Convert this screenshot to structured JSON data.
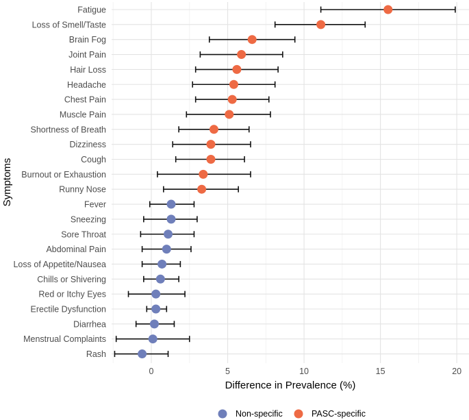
{
  "chart_data": {
    "type": "scatter",
    "xlabel": "Difference in Prevalence (%)",
    "ylabel": "Symptoms",
    "xlim": [
      -2.6,
      20.8
    ],
    "xticks": [
      0,
      5,
      10,
      15,
      20
    ],
    "xtick_labels": [
      "0",
      "5",
      "10",
      "15",
      "20"
    ],
    "grid": true,
    "legend_position": "bottom",
    "legend": [
      {
        "name": "Non-specific",
        "color": "#6f7fba"
      },
      {
        "name": "PASC-specific",
        "color": "#ee6a44"
      }
    ],
    "points": [
      {
        "label": "Fatigue",
        "value": 15.5,
        "lo": 11.1,
        "hi": 19.9,
        "group": "PASC-specific"
      },
      {
        "label": "Loss of Smell/Taste",
        "value": 11.1,
        "lo": 8.1,
        "hi": 14.0,
        "group": "PASC-specific"
      },
      {
        "label": "Brain Fog",
        "value": 6.6,
        "lo": 3.8,
        "hi": 9.4,
        "group": "PASC-specific"
      },
      {
        "label": "Joint Pain",
        "value": 5.9,
        "lo": 3.2,
        "hi": 8.6,
        "group": "PASC-specific"
      },
      {
        "label": "Hair Loss",
        "value": 5.6,
        "lo": 2.9,
        "hi": 8.3,
        "group": "PASC-specific"
      },
      {
        "label": "Headache",
        "value": 5.4,
        "lo": 2.7,
        "hi": 8.1,
        "group": "PASC-specific"
      },
      {
        "label": "Chest Pain",
        "value": 5.3,
        "lo": 2.9,
        "hi": 7.7,
        "group": "PASC-specific"
      },
      {
        "label": "Muscle Pain",
        "value": 5.1,
        "lo": 2.3,
        "hi": 7.8,
        "group": "PASC-specific"
      },
      {
        "label": "Shortness of Breath",
        "value": 4.1,
        "lo": 1.8,
        "hi": 6.4,
        "group": "PASC-specific"
      },
      {
        "label": "Dizziness",
        "value": 3.9,
        "lo": 1.4,
        "hi": 6.5,
        "group": "PASC-specific"
      },
      {
        "label": "Cough",
        "value": 3.9,
        "lo": 1.6,
        "hi": 6.1,
        "group": "PASC-specific"
      },
      {
        "label": "Burnout or Exhaustion",
        "value": 3.4,
        "lo": 0.4,
        "hi": 6.5,
        "group": "PASC-specific"
      },
      {
        "label": "Runny Nose",
        "value": 3.3,
        "lo": 0.8,
        "hi": 5.7,
        "group": "PASC-specific"
      },
      {
        "label": "Fever",
        "value": 1.3,
        "lo": -0.1,
        "hi": 2.8,
        "group": "Non-specific"
      },
      {
        "label": "Sneezing",
        "value": 1.3,
        "lo": -0.5,
        "hi": 3.0,
        "group": "Non-specific"
      },
      {
        "label": "Sore Throat",
        "value": 1.1,
        "lo": -0.7,
        "hi": 2.8,
        "group": "Non-specific"
      },
      {
        "label": "Abdominal Pain",
        "value": 1.0,
        "lo": -0.6,
        "hi": 2.6,
        "group": "Non-specific"
      },
      {
        "label": "Loss of Appetite/Nausea",
        "value": 0.7,
        "lo": -0.6,
        "hi": 1.9,
        "group": "Non-specific"
      },
      {
        "label": "Chills or Shivering",
        "value": 0.6,
        "lo": -0.5,
        "hi": 1.8,
        "group": "Non-specific"
      },
      {
        "label": "Red or Itchy Eyes",
        "value": 0.3,
        "lo": -1.5,
        "hi": 2.2,
        "group": "Non-specific"
      },
      {
        "label": "Erectile Dysfunction",
        "value": 0.3,
        "lo": -0.3,
        "hi": 1.0,
        "group": "Non-specific"
      },
      {
        "label": "Diarrhea",
        "value": 0.2,
        "lo": -1.0,
        "hi": 1.5,
        "group": "Non-specific"
      },
      {
        "label": "Menstrual Complaints",
        "value": 0.1,
        "lo": -2.3,
        "hi": 2.5,
        "group": "Non-specific"
      },
      {
        "label": "Rash",
        "value": -0.6,
        "lo": -2.4,
        "hi": 1.1,
        "group": "Non-specific"
      }
    ]
  }
}
